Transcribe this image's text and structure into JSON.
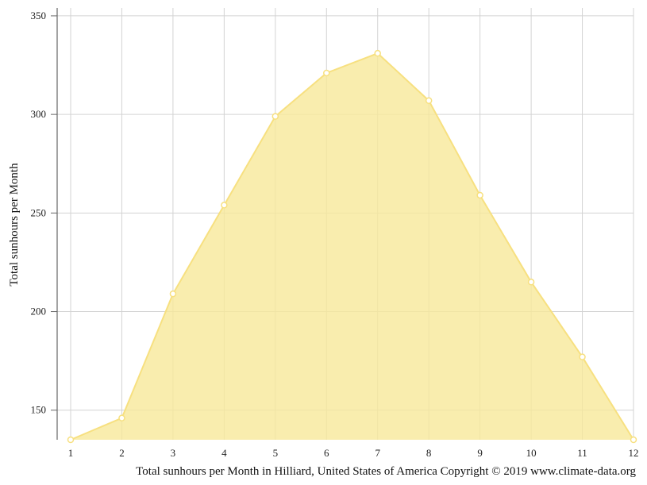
{
  "chart_data": {
    "type": "area",
    "x": [
      1,
      2,
      3,
      4,
      5,
      6,
      7,
      8,
      9,
      10,
      11,
      12
    ],
    "series": [
      {
        "values": [
          135,
          146,
          209,
          254,
          299,
          321,
          331,
          307,
          259,
          215,
          177,
          135
        ]
      }
    ],
    "ylabel": "Total sunhours per Month",
    "caption": "Total sunhours per Month in Hilliard, United States of America Copyright © 2019 www.climate-data.org",
    "ylim": [
      135,
      354
    ],
    "yticks": [
      150,
      200,
      250,
      300,
      350
    ],
    "xticks": [
      1,
      2,
      3,
      4,
      5,
      6,
      7,
      8,
      9,
      10,
      11,
      12
    ],
    "grid": true,
    "colors": {
      "fill": "#f8e89a",
      "line": "#f7e080",
      "marker_fill": "#ffffff",
      "grid": "#d3d3d3",
      "axis": "#666666"
    }
  }
}
